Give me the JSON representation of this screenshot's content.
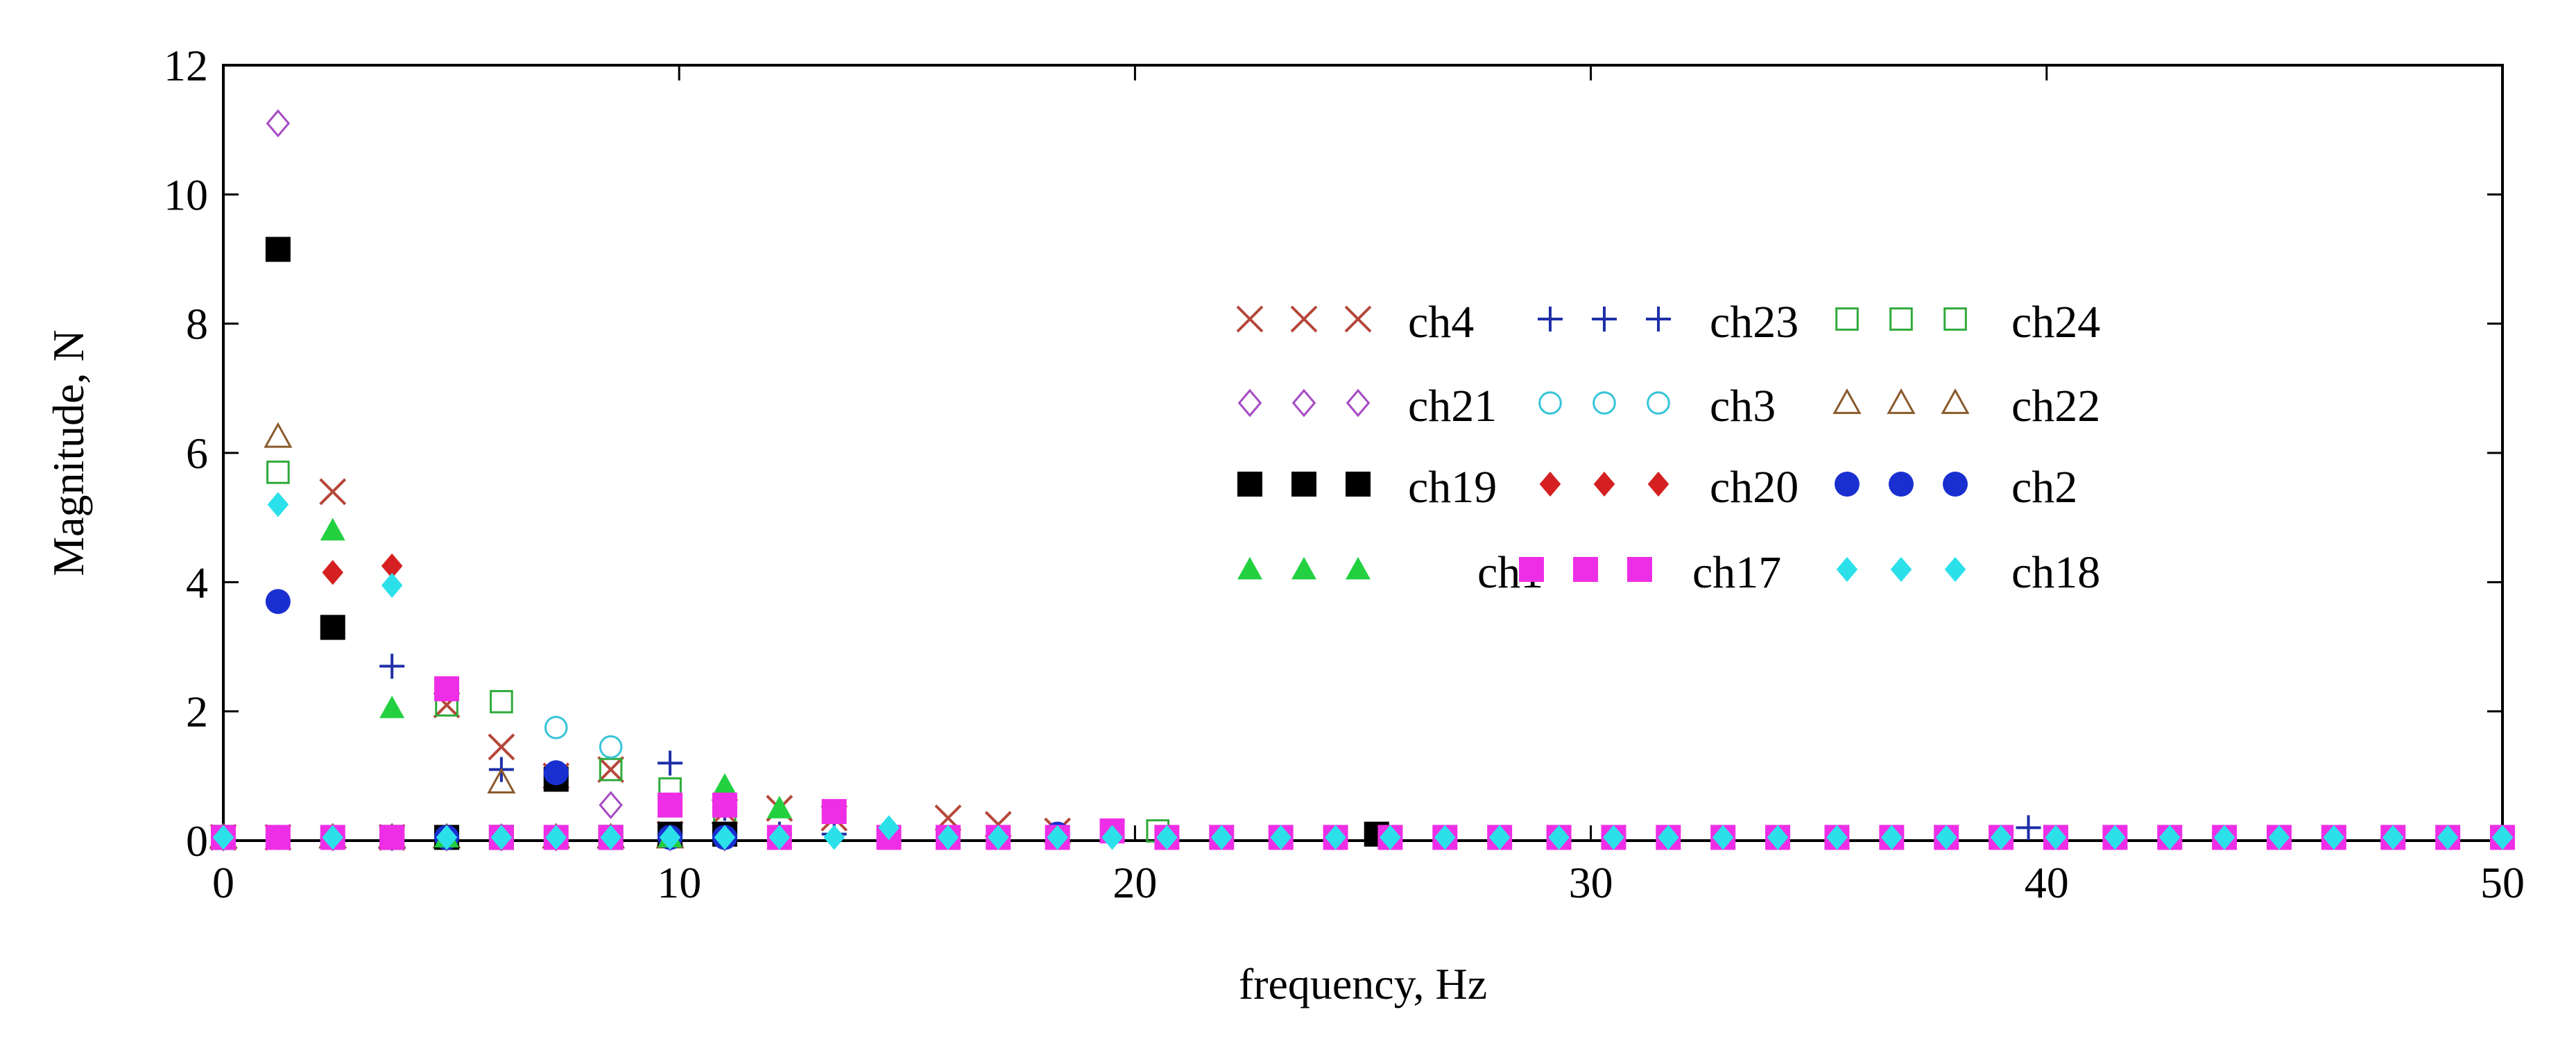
{
  "chart_data": {
    "type": "scatter",
    "title": "",
    "xlabel": "frequency, Hz",
    "ylabel": "Magnitude, N",
    "xlim": [
      0,
      50
    ],
    "ylim": [
      0,
      12
    ],
    "xticks": [
      0,
      10,
      20,
      30,
      40,
      50
    ],
    "yticks": [
      0,
      2,
      4,
      6,
      8,
      10,
      12
    ],
    "xtick_labels": [
      "0",
      "10",
      "20",
      "30",
      "40",
      "50"
    ],
    "ytick_labels": [
      "0",
      "2",
      "4",
      "6",
      "8",
      "10",
      "12"
    ],
    "grid": false,
    "legend_position": "center-right",
    "series": [
      {
        "name": "ch4",
        "marker": "x",
        "color": "#b5473a",
        "x": [
          0,
          1.2,
          2.4,
          3.7,
          4.9,
          6.1,
          7.3,
          8.5,
          9.8,
          11,
          12.2,
          13.4,
          15.9,
          17,
          18.3
        ],
        "y": [
          0.05,
          0.05,
          5.4,
          0.05,
          2.1,
          1.45,
          1.0,
          1.1,
          0.1,
          0.45,
          0.5,
          0.35,
          0.35,
          0.25,
          0.15
        ]
      },
      {
        "name": "ch23",
        "marker": "plus",
        "color": "#1f2fa8",
        "x": [
          0,
          1.2,
          2.4,
          3.7,
          4.9,
          6.1,
          7.3,
          8.5,
          9.8,
          11,
          12.2,
          13.4,
          39.6
        ],
        "y": [
          0.05,
          0.05,
          0.05,
          2.7,
          0.05,
          1.1,
          1.0,
          0.05,
          1.2,
          0.5,
          0.1,
          0.1,
          0.2
        ]
      },
      {
        "name": "ch24",
        "marker": "square-open",
        "color": "#2eaa3a",
        "x": [
          0,
          1.2,
          2.4,
          3.7,
          4.9,
          6.1,
          7.3,
          8.5,
          9.8,
          11,
          20.5
        ],
        "y": [
          0.05,
          5.7,
          0.05,
          0.05,
          2.1,
          2.15,
          0.05,
          1.1,
          0.8,
          0.3,
          0.15
        ]
      },
      {
        "name": "ch21",
        "marker": "diamond-open",
        "color": "#a64bc4",
        "x": [
          0,
          1.2,
          2.4,
          3.7,
          4.9,
          6.1,
          7.3,
          8.5,
          9.8,
          11
        ],
        "y": [
          0.05,
          11.1,
          0.05,
          0.05,
          0.05,
          0.05,
          0.05,
          0.55,
          0.05,
          0.05
        ]
      },
      {
        "name": "ch3",
        "marker": "circle-open",
        "color": "#36c4d8",
        "x": [
          0,
          1.2,
          2.4,
          3.7,
          4.9,
          6.1,
          7.3,
          8.5,
          9.8,
          11
        ],
        "y": [
          0.05,
          0.05,
          0.05,
          0.05,
          0.05,
          0.05,
          1.75,
          1.45,
          0.05,
          0.05
        ]
      },
      {
        "name": "ch22",
        "marker": "triangle-open",
        "color": "#8a5a2b",
        "x": [
          0,
          1.2,
          2.4,
          3.7,
          4.9,
          6.1,
          7.3,
          8.5,
          9.8
        ],
        "y": [
          0.05,
          6.25,
          0.05,
          0.05,
          0.05,
          0.9,
          0.05,
          0.05,
          0.05
        ]
      },
      {
        "name": "ch19",
        "marker": "square",
        "color": "#000000",
        "x": [
          0,
          1.2,
          2.4,
          3.7,
          4.9,
          6.1,
          7.3,
          8.5,
          9.8,
          11,
          25.3
        ],
        "y": [
          0.05,
          9.15,
          3.3,
          0.05,
          0.05,
          0.05,
          0.95,
          0.05,
          0.1,
          0.1,
          0.1
        ]
      },
      {
        "name": "ch20",
        "marker": "diamond",
        "color": "#d42020",
        "x": [
          0,
          1.2,
          2.4,
          3.7,
          4.9
        ],
        "y": [
          0.05,
          0.05,
          4.15,
          4.25,
          0.05
        ]
      },
      {
        "name": "ch2",
        "marker": "circle",
        "color": "#1a2fd0",
        "x": [
          0,
          1.2,
          2.4,
          3.7,
          4.9,
          6.1,
          7.3,
          8.5,
          9.8,
          11,
          18.3
        ],
        "y": [
          0.05,
          3.7,
          0.05,
          0.05,
          0.05,
          0.05,
          1.05,
          0.05,
          0.05,
          0.05,
          0.1
        ]
      },
      {
        "name": "ch1",
        "marker": "triangle",
        "color": "#22d040",
        "x": [
          0,
          1.2,
          2.4,
          3.7,
          4.9,
          6.1,
          7.3,
          8.5,
          9.8,
          11,
          12.2
        ],
        "y": [
          0.05,
          0.05,
          4.8,
          2.05,
          0.05,
          0.05,
          0.05,
          0.05,
          0.05,
          0.85,
          0.5
        ]
      },
      {
        "name": "ch17",
        "marker": "square",
        "color": "#ee2ee6",
        "x": [
          0,
          1.2,
          2.4,
          3.7,
          4.9,
          6.1,
          7.3,
          8.5,
          9.8,
          11,
          12.2,
          13.4,
          14.6,
          15.9,
          17,
          18.3,
          19.5,
          20.7,
          21.9,
          23.2,
          24.4,
          25.6,
          26.8,
          28,
          29.3,
          30.5,
          31.7,
          32.9,
          34.1,
          35.4,
          36.6,
          37.8,
          39,
          40.2,
          41.5,
          42.7,
          43.9,
          45.1,
          46.3,
          47.6,
          48.8,
          50
        ],
        "y": [
          0.05,
          0.05,
          0.05,
          0.05,
          2.35,
          0.05,
          0.05,
          0.05,
          0.55,
          0.55,
          0.05,
          0.45,
          0.05,
          0.05,
          0.05,
          0.05,
          0.15,
          0.05,
          0.05,
          0.05,
          0.05,
          0.05,
          0.05,
          0.05,
          0.05,
          0.05,
          0.05,
          0.05,
          0.05,
          0.05,
          0.05,
          0.05,
          0.05,
          0.05,
          0.05,
          0.05,
          0.05,
          0.05,
          0.05,
          0.05,
          0.05,
          0.05
        ]
      },
      {
        "name": "ch18",
        "marker": "diamond",
        "color": "#2ce0ea",
        "x": [
          0,
          1.2,
          2.4,
          3.7,
          4.9,
          6.1,
          7.3,
          8.5,
          9.8,
          11,
          12.2,
          13.4,
          14.6,
          15.9,
          17,
          18.3,
          19.5,
          20.7,
          21.9,
          23.2,
          24.4,
          25.6,
          26.8,
          28,
          29.3,
          30.5,
          31.7,
          32.9,
          34.1,
          35.4,
          36.6,
          37.8,
          39,
          40.2,
          41.5,
          42.7,
          43.9,
          45.1,
          46.3,
          47.6,
          48.8,
          50
        ],
        "y": [
          0.05,
          5.2,
          0.05,
          3.95,
          0.05,
          0.05,
          0.05,
          0.05,
          0.05,
          0.05,
          0.05,
          0.05,
          0.2,
          0.05,
          0.05,
          0.05,
          0.05,
          0.05,
          0.05,
          0.05,
          0.05,
          0.05,
          0.05,
          0.05,
          0.05,
          0.05,
          0.05,
          0.05,
          0.05,
          0.05,
          0.05,
          0.05,
          0.05,
          0.05,
          0.05,
          0.05,
          0.05,
          0.05,
          0.05,
          0.05,
          0.05,
          0.05
        ]
      }
    ]
  }
}
